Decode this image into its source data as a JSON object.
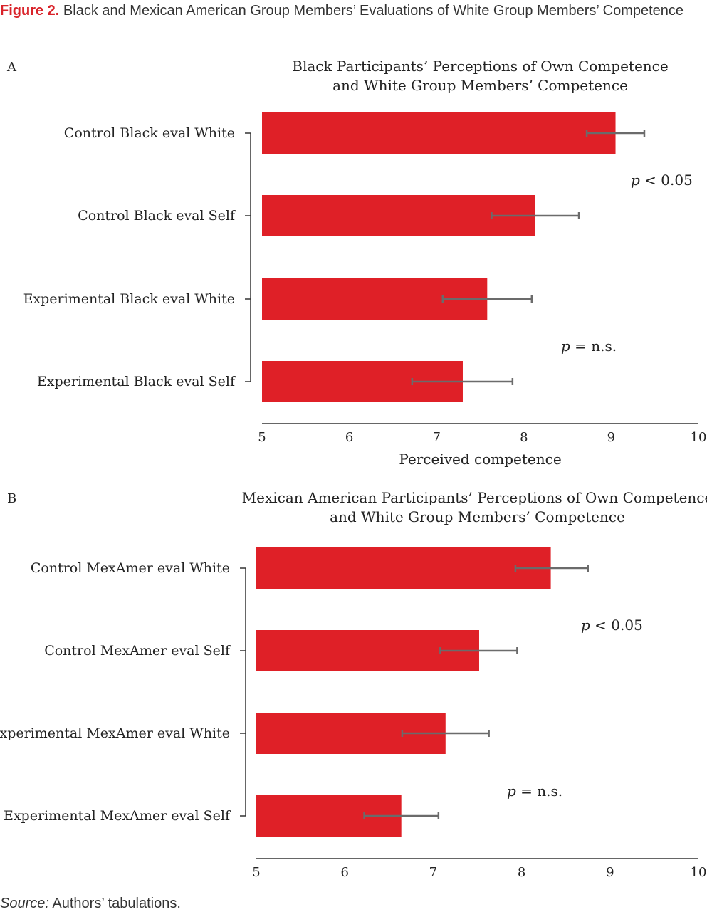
{
  "figure": {
    "label": "Figure 2.",
    "title": "Black and Mexican American Group Members’ Evaluations of White Group Members’ Competence"
  },
  "source": {
    "label": "Source:",
    "text": "Authors’ tabulations."
  },
  "colors": {
    "bar": "#df2027",
    "error_bar": "#6b6b6b",
    "axis": "#333333",
    "title_label": "#d9232a"
  },
  "chart_data": [
    {
      "type": "bar",
      "orientation": "horizontal",
      "panel": "A",
      "title": [
        "Black Participants’ Perceptions of Own Competence",
        "and White Group Members’ Competence"
      ],
      "xlabel": "Perceived competence",
      "xlim": [
        5,
        10
      ],
      "xticks": [
        5,
        6,
        7,
        8,
        9,
        10
      ],
      "categories": [
        "Control Black eval White",
        "Control Black eval Self",
        "Experimental Black eval White",
        "Experimental Black eval Self"
      ],
      "values": [
        9.05,
        8.13,
        7.58,
        7.3
      ],
      "error_low": [
        8.72,
        7.63,
        7.07,
        6.72
      ],
      "error_high": [
        9.38,
        8.63,
        8.09,
        7.87
      ],
      "annotations": [
        {
          "italic": "p",
          "text": " < 0.05"
        },
        {
          "italic": "p",
          "text": " = n.s."
        }
      ]
    },
    {
      "type": "bar",
      "orientation": "horizontal",
      "panel": "B",
      "title": [
        "Mexican American Participants’ Perceptions of Own Competence",
        "and White Group Members’ Competence"
      ],
      "xlabel": "",
      "xlim": [
        5,
        10
      ],
      "xticks": [
        5,
        6,
        7,
        8,
        9,
        10
      ],
      "categories": [
        "Control MexAmer eval White",
        "Control MexAmer eval Self",
        "Experimental MexAmer eval White",
        "Experimental MexAmer eval Self"
      ],
      "values": [
        8.33,
        7.52,
        7.14,
        6.64
      ],
      "error_low": [
        7.93,
        7.08,
        6.65,
        6.22
      ],
      "error_high": [
        8.75,
        7.95,
        7.63,
        7.06
      ],
      "annotations": [
        {
          "italic": "p",
          "text": " < 0.05"
        },
        {
          "italic": "p",
          "text": " = n.s."
        }
      ]
    }
  ]
}
